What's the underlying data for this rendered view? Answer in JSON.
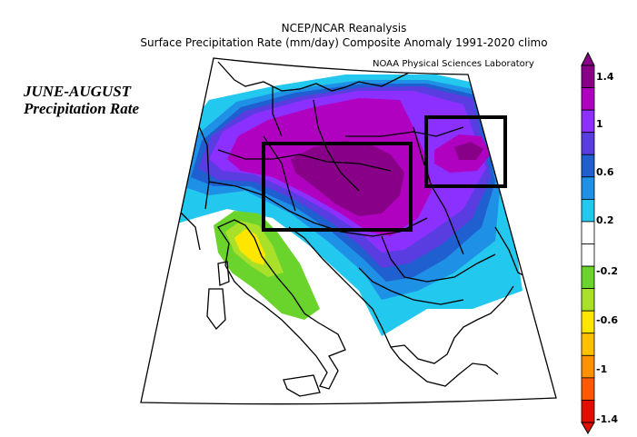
{
  "header": {
    "title_line1": "NCEP/NCAR Reanalysis",
    "title_line2": "Surface Precipitation Rate (mm/day) Composite Anomaly 1991-2020 climo",
    "credit": "NOAA Physical Sciences Laboratory"
  },
  "annotation": {
    "season": "JUNE-AUGUST",
    "variable": "Precipitation Rate"
  },
  "colorbar": {
    "labels": [
      "1.4",
      "1",
      "0.6",
      "0.2",
      "-0.2",
      "-0.6",
      "-1",
      "-1.4"
    ],
    "colors": [
      "#880088",
      "#b000c0",
      "#8c30ff",
      "#5a3de0",
      "#1f5fd0",
      "#1e90e6",
      "#22c8ee",
      "#ffffff",
      "#ffffff",
      "#6ad32c",
      "#a8e02a",
      "#ffe600",
      "#ffc000",
      "#ff9000",
      "#ff5a00",
      "#e01000"
    ]
  },
  "map": {
    "land_outline_color": "#000000",
    "highlight_boxes": [
      "central-europe-box",
      "eastern-europe-box"
    ]
  }
}
